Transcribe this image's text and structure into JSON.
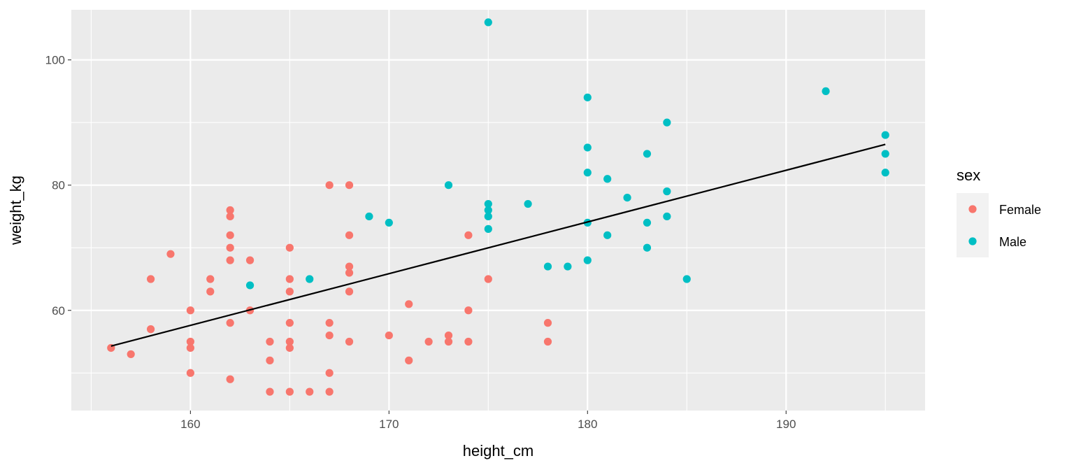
{
  "chart_data": {
    "type": "scatter",
    "title": "",
    "xlabel": "height_cm",
    "ylabel": "weight_kg",
    "xlim": [
      154,
      197
    ],
    "ylim": [
      44,
      108
    ],
    "x_ticks": [
      160,
      170,
      180,
      190
    ],
    "y_ticks": [
      60,
      80,
      100
    ],
    "grid": true,
    "legend": {
      "title": "sex",
      "position": "right",
      "entries": [
        "Female",
        "Male"
      ]
    },
    "colors": {
      "Female": "#F8766D",
      "Male": "#00BFC4",
      "panel": "#EBEBEB",
      "grid": "#FFFFFF",
      "line": "#000000"
    },
    "series": [
      {
        "name": "Female",
        "points": [
          [
            156,
            54
          ],
          [
            157,
            53
          ],
          [
            158,
            65
          ],
          [
            158,
            57
          ],
          [
            159,
            69
          ],
          [
            160,
            60
          ],
          [
            160,
            55
          ],
          [
            160,
            54
          ],
          [
            160,
            50
          ],
          [
            161,
            65
          ],
          [
            161,
            63
          ],
          [
            162,
            76
          ],
          [
            162,
            75
          ],
          [
            162,
            72
          ],
          [
            162,
            70
          ],
          [
            162,
            68
          ],
          [
            162,
            58
          ],
          [
            162,
            49
          ],
          [
            163,
            68
          ],
          [
            163,
            60
          ],
          [
            164,
            55
          ],
          [
            164,
            52
          ],
          [
            164,
            47
          ],
          [
            165,
            70
          ],
          [
            165,
            65
          ],
          [
            165,
            63
          ],
          [
            165,
            58
          ],
          [
            165,
            55
          ],
          [
            165,
            54
          ],
          [
            165,
            47
          ],
          [
            166,
            47
          ],
          [
            167,
            80
          ],
          [
            167,
            58
          ],
          [
            167,
            56
          ],
          [
            167,
            50
          ],
          [
            167,
            47
          ],
          [
            168,
            80
          ],
          [
            168,
            72
          ],
          [
            168,
            67
          ],
          [
            168,
            66
          ],
          [
            168,
            63
          ],
          [
            168,
            55
          ],
          [
            170,
            56
          ],
          [
            171,
            61
          ],
          [
            171,
            52
          ],
          [
            172,
            55
          ],
          [
            173,
            56
          ],
          [
            173,
            55
          ],
          [
            174,
            72
          ],
          [
            174,
            60
          ],
          [
            174,
            55
          ],
          [
            175,
            65
          ],
          [
            178,
            58
          ],
          [
            178,
            55
          ]
        ]
      },
      {
        "name": "Male",
        "points": [
          [
            163,
            64
          ],
          [
            166,
            65
          ],
          [
            169,
            75
          ],
          [
            170,
            74
          ],
          [
            173,
            80
          ],
          [
            175,
            106
          ],
          [
            175,
            77
          ],
          [
            175,
            76
          ],
          [
            175,
            75
          ],
          [
            175,
            73
          ],
          [
            177,
            77
          ],
          [
            178,
            67
          ],
          [
            179,
            67
          ],
          [
            180,
            94
          ],
          [
            180,
            86
          ],
          [
            180,
            82
          ],
          [
            180,
            74
          ],
          [
            180,
            68
          ],
          [
            181,
            81
          ],
          [
            181,
            72
          ],
          [
            182,
            78
          ],
          [
            183,
            85
          ],
          [
            183,
            74
          ],
          [
            183,
            70
          ],
          [
            184,
            90
          ],
          [
            184,
            79
          ],
          [
            184,
            75
          ],
          [
            185,
            65
          ],
          [
            192,
            95
          ],
          [
            195,
            88
          ],
          [
            195,
            85
          ],
          [
            195,
            82
          ]
        ]
      }
    ],
    "trend_line": {
      "type": "linear",
      "x": [
        156,
        195
      ],
      "y": [
        54.3,
        86.5
      ]
    }
  }
}
